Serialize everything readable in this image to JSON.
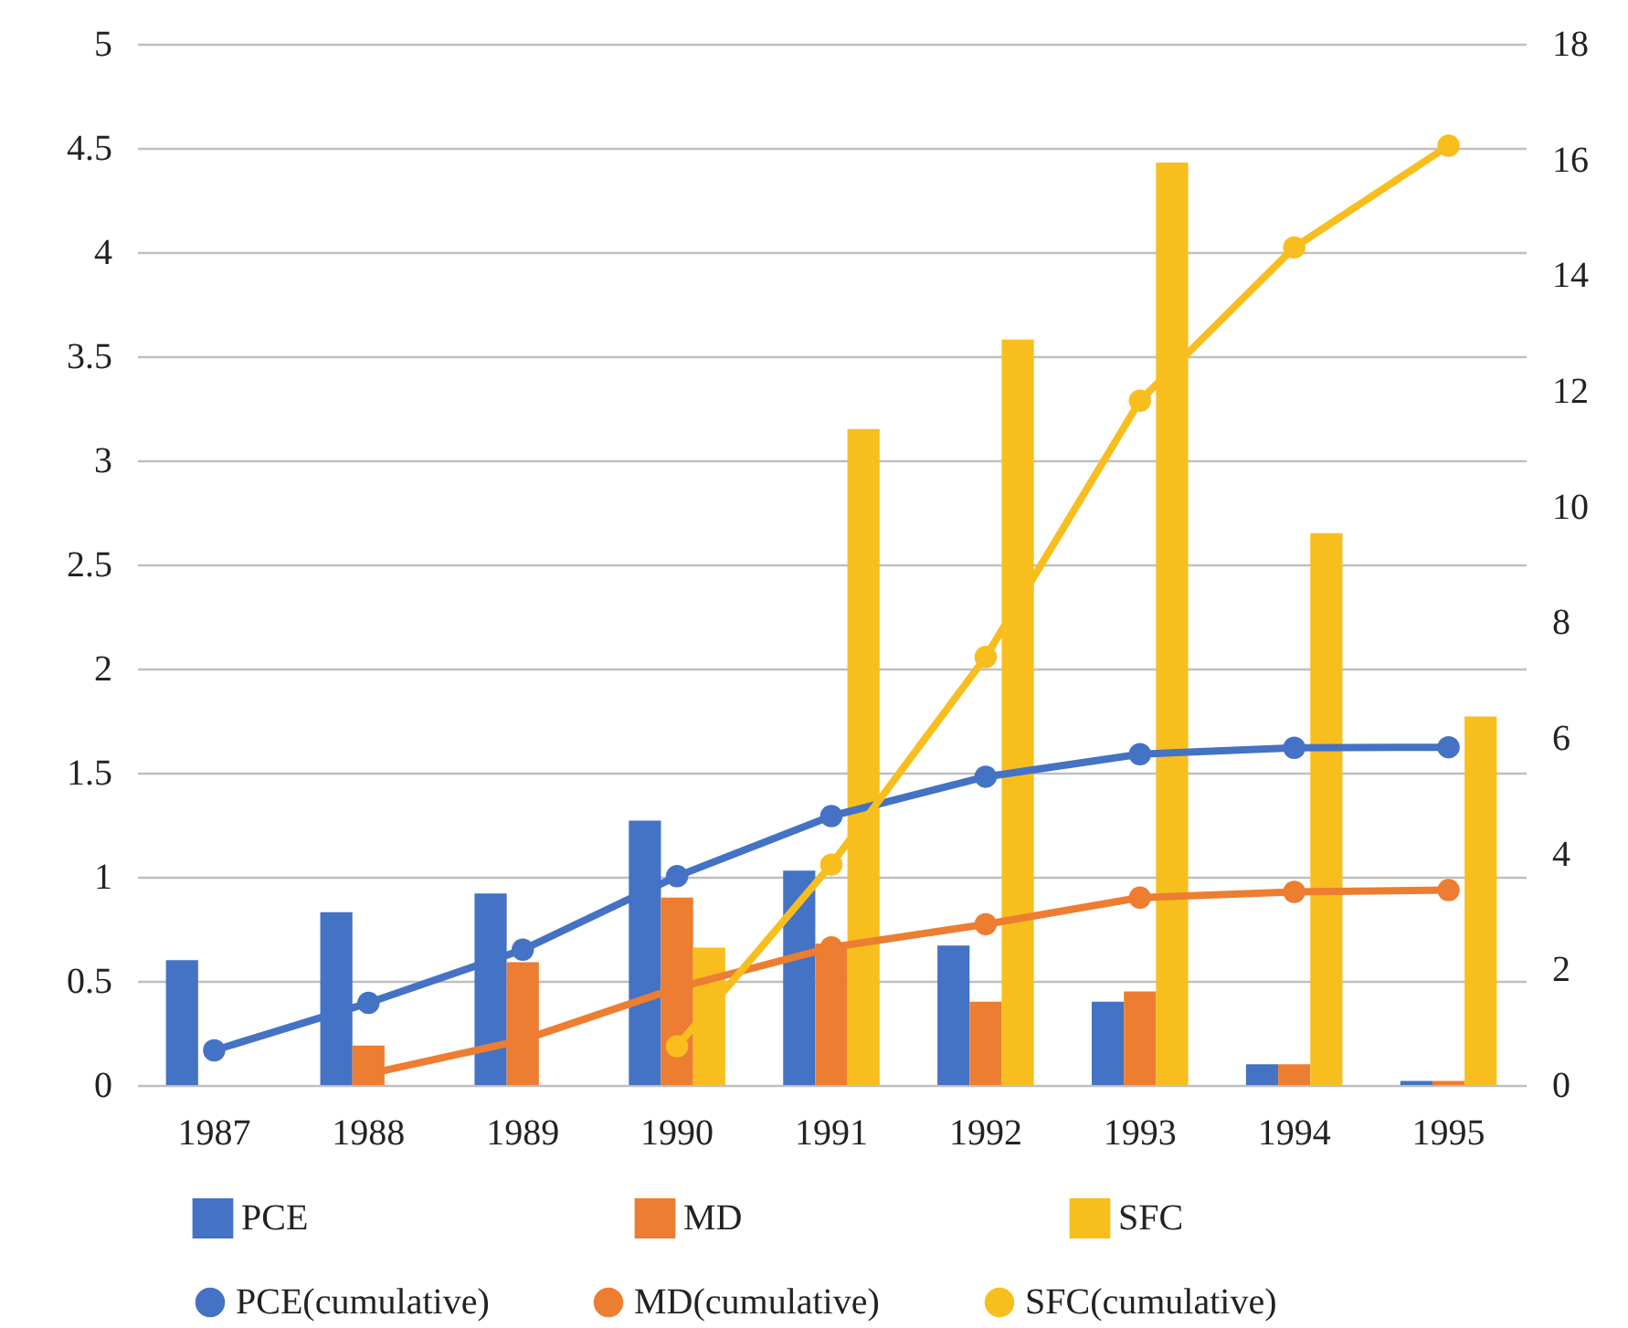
{
  "chart_data": {
    "type": "bar",
    "categories": [
      "1987",
      "1988",
      "1989",
      "1990",
      "1991",
      "1992",
      "1993",
      "1994",
      "1995"
    ],
    "series": [
      {
        "name": "PCE",
        "color": "#4472c4",
        "values": [
          0.6,
          0.83,
          0.92,
          1.27,
          1.03,
          0.67,
          0.4,
          0.1,
          0.02
        ]
      },
      {
        "name": "MD",
        "color": "#ed7d31",
        "values": [
          null,
          0.19,
          0.59,
          0.9,
          0.68,
          0.4,
          0.45,
          0.1,
          0.02
        ]
      },
      {
        "name": "SFC",
        "color": "#f8be1e",
        "values": [
          null,
          null,
          null,
          0.66,
          3.15,
          3.58,
          4.43,
          2.65,
          1.77
        ]
      },
      {
        "name": "PCE(cumulative)",
        "type": "line",
        "axis": "y2",
        "color": "#4472c4",
        "values": [
          0.6,
          1.42,
          2.34,
          3.61,
          4.65,
          5.33,
          5.72,
          5.83,
          5.84
        ]
      },
      {
        "name": "MD(cumulative)",
        "type": "line",
        "axis": "y2",
        "color": "#ed7d31",
        "values": [
          null,
          0.19,
          0.78,
          1.68,
          2.38,
          2.78,
          3.24,
          3.34,
          3.37
        ]
      },
      {
        "name": "SFC(cumulative)",
        "type": "line",
        "axis": "y2",
        "color": "#f8be1e",
        "values": [
          null,
          null,
          null,
          0.67,
          3.81,
          7.4,
          11.83,
          14.48,
          16.24
        ]
      }
    ],
    "ylim": [
      0,
      5
    ],
    "yticks": [
      0,
      0.5,
      1,
      1.5,
      2,
      2.5,
      3,
      3.5,
      4,
      4.5,
      5
    ],
    "y2lim": [
      0,
      18
    ],
    "y2ticks": [
      0,
      2,
      4,
      6,
      8,
      10,
      12,
      14,
      16,
      18
    ],
    "grid": "y",
    "legend": "bottom",
    "marker": "circle",
    "line_style": "solid"
  }
}
